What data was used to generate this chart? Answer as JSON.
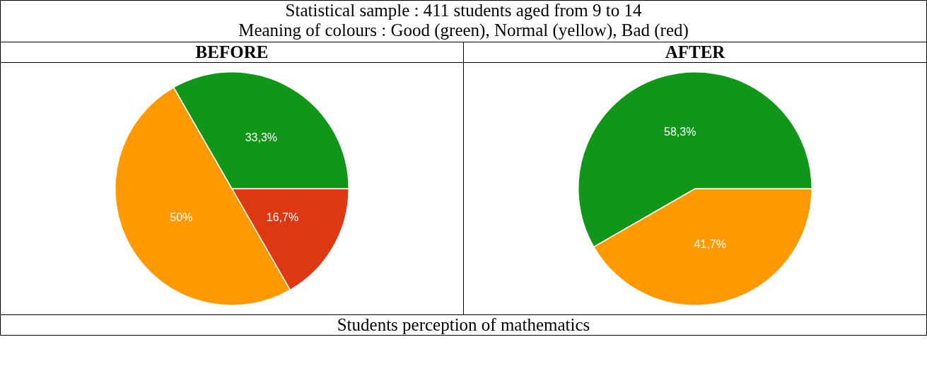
{
  "chart_data": [
    {
      "type": "pie",
      "title": "BEFORE",
      "annotations": [
        "Statistical sample : 411 students aged from 9 to 14",
        "Meaning of colours : Good (green), Normal (yellow), Bad (red)",
        "Students perception of mathematics"
      ],
      "categories": [
        null,
        null,
        null
      ],
      "values": [
        16.7,
        50,
        33.3
      ],
      "colors": [
        "#dc3912",
        "#ff9900",
        "#109618"
      ],
      "value_labels": [
        "16,7%",
        "50%",
        "33,3%"
      ]
    },
    {
      "type": "pie",
      "title": "AFTER",
      "categories": [
        null,
        null
      ],
      "values": [
        41.7,
        58.3
      ],
      "colors": [
        "#ff9900",
        "#109618"
      ],
      "value_labels": [
        "41,7%",
        "58,3%"
      ]
    }
  ]
}
